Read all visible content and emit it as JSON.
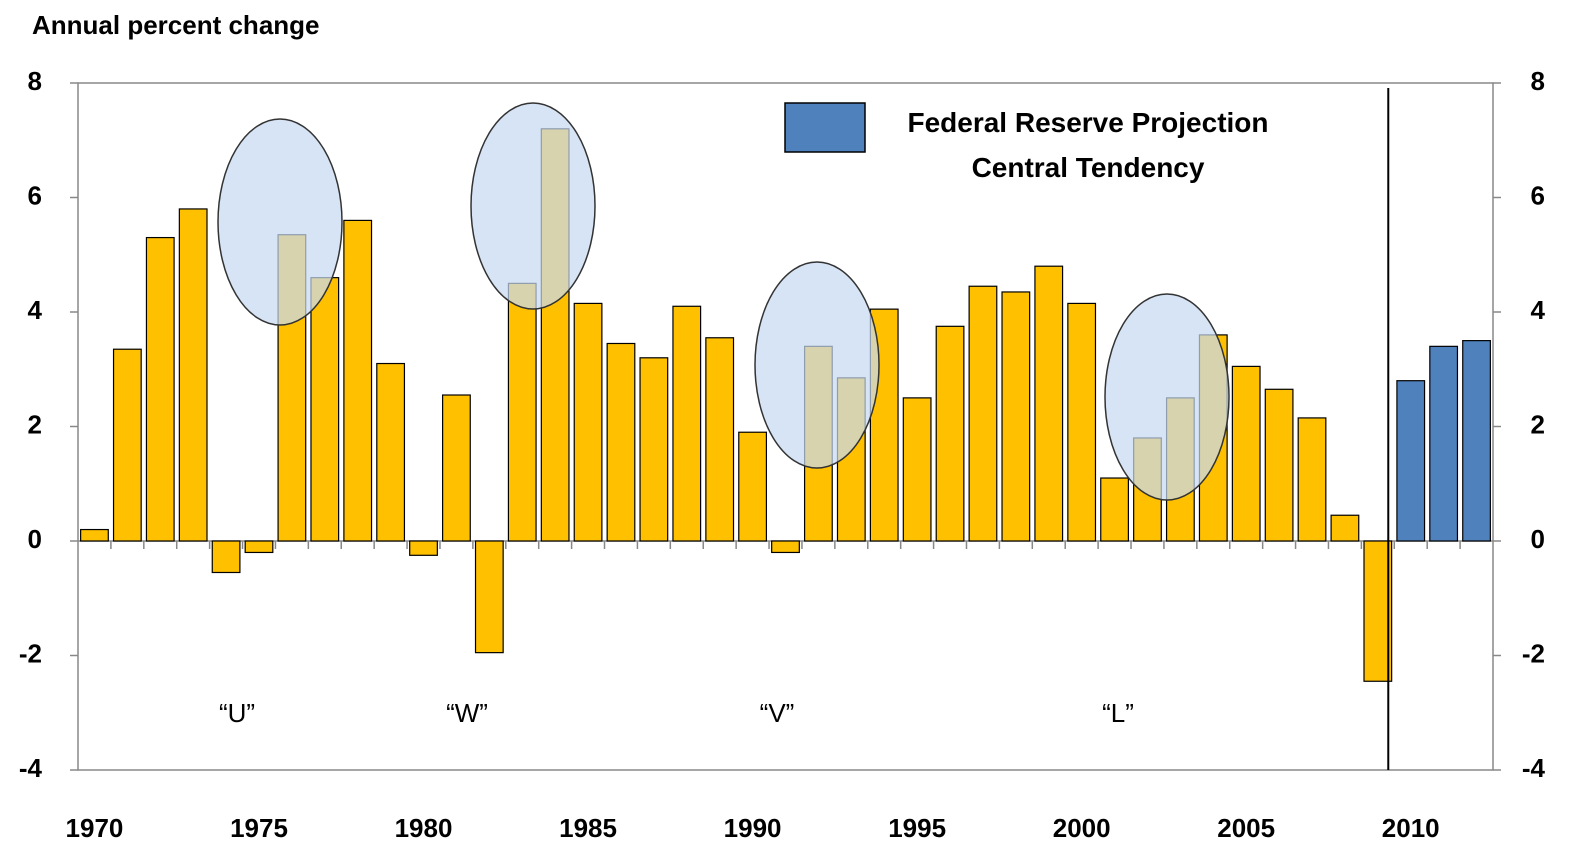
{
  "chart_data": {
    "type": "bar",
    "title": "Annual percent change",
    "categories": [
      "1970",
      null,
      null,
      null,
      null,
      "1975",
      null,
      null,
      null,
      null,
      "1980",
      null,
      null,
      null,
      null,
      "1985",
      null,
      null,
      null,
      null,
      "1990",
      null,
      null,
      null,
      null,
      "1995",
      null,
      null,
      null,
      null,
      "2000",
      null,
      null,
      null,
      null,
      "2005",
      null,
      null,
      null,
      null,
      "2010",
      null,
      null
    ],
    "series": [
      {
        "color": "#ffc000",
        "values": [
          0.2,
          3.35,
          5.3,
          5.8,
          -0.55,
          -0.2,
          5.35,
          4.6,
          5.6,
          3.1,
          -0.25,
          2.55,
          -1.95,
          4.5,
          7.2,
          4.15,
          3.45,
          3.2,
          4.1,
          3.55,
          1.9,
          -0.2,
          3.4,
          2.85,
          4.05,
          2.5,
          3.75,
          4.45,
          4.35,
          4.8,
          4.15,
          1.1,
          1.8,
          2.5,
          3.6,
          3.05,
          2.65,
          2.15,
          0.45,
          -2.45,
          null,
          null,
          null
        ]
      },
      {
        "name": "Federal Reserve Projection Central Tendency",
        "color": "#4f81bd",
        "values": [
          null,
          null,
          null,
          null,
          null,
          null,
          null,
          null,
          null,
          null,
          null,
          null,
          null,
          null,
          null,
          null,
          null,
          null,
          null,
          null,
          null,
          null,
          null,
          null,
          null,
          null,
          null,
          null,
          null,
          null,
          null,
          null,
          null,
          null,
          null,
          null,
          null,
          null,
          null,
          null,
          2.8,
          3.4,
          3.5
        ]
      }
    ],
    "annotations": [
      "“U”",
      "“W”",
      "“V”",
      "“L”"
    ],
    "ylim": [
      -4,
      8
    ],
    "yticks": [
      -4,
      -2,
      0,
      2,
      4,
      6,
      8
    ],
    "y2lim": [
      -4,
      8
    ],
    "y2ticks": [
      -4,
      -2,
      0,
      2,
      4,
      6,
      8
    ],
    "legend": "top-right"
  }
}
